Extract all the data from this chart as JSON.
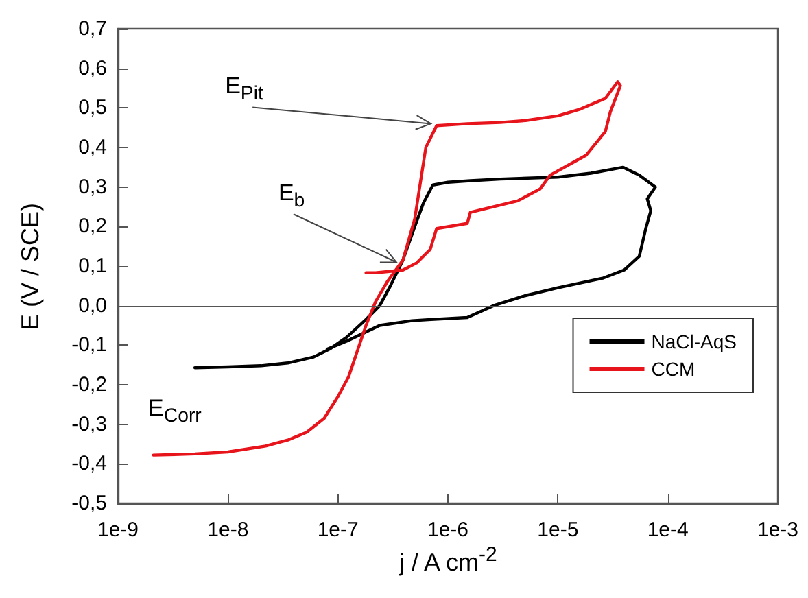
{
  "chart_data": {
    "type": "line",
    "xlabel": "j / A cm$^{-2}$",
    "ylabel": "E (V / SCE)",
    "log": "x",
    "xlim": [
      1e-09,
      0.001
    ],
    "xticks": [
      {
        "value": 1e-09,
        "label": "1e-9"
      },
      {
        "value": 1e-08,
        "label": "1e-8"
      },
      {
        "value": 1e-07,
        "label": "1e-7"
      },
      {
        "value": 1e-06,
        "label": "1e-6"
      },
      {
        "value": 1e-05,
        "label": "1e-5"
      },
      {
        "value": 0.0001,
        "label": "1e-4"
      },
      {
        "value": 0.001,
        "label": "1e-3"
      }
    ],
    "ylim": [
      -0.5,
      0.7
    ],
    "yticks": [
      {
        "value": -0.5,
        "label": "-0,5"
      },
      {
        "value": -0.4,
        "label": "-0,4"
      },
      {
        "value": -0.3,
        "label": "-0,3"
      },
      {
        "value": -0.2,
        "label": "-0,2"
      },
      {
        "value": -0.1,
        "label": "-0,1"
      },
      {
        "value": 0,
        "label": "0,0"
      },
      {
        "value": 0.1,
        "label": "0,1"
      },
      {
        "value": 0.2,
        "label": "0,2"
      },
      {
        "value": 0.3,
        "label": "0,3"
      },
      {
        "value": 0.4,
        "label": "0,4"
      },
      {
        "value": 0.5,
        "label": "0,5"
      },
      {
        "value": 0.6,
        "label": "0,6"
      },
      {
        "value": 0.7,
        "label": "0,7"
      }
    ],
    "grid": false,
    "legend": "bottom right",
    "marker": "none",
    "line_style": "solid",
    "ref_lines": [
      {
        "axis": "y",
        "value": 0,
        "color": "#555555"
      }
    ],
    "annotations": [
      {
        "text": "E$_{Pit}$",
        "x": 7e-07,
        "y": 0.46
      },
      {
        "text": "E$_{b}$",
        "x": 3.4e-07,
        "y": 0.11
      },
      "E$_{Corr}$"
    ],
    "series": [
      {
        "name": "NaCl-AqS",
        "color": "#000000",
        "x": [
          5e-09,
          1e-08,
          2e-08,
          3.5e-08,
          6e-08,
          8.4e-08,
          1.2e-07,
          1.8e-07,
          2.4e-07,
          3e-07,
          3.9e-07,
          5e-07,
          6e-07,
          7.3e-07,
          1e-06,
          1.6e-06,
          3e-06,
          1e-05,
          2e-05,
          3.9e-05,
          5.5e-05,
          7.7e-05,
          6.5e-05,
          7e-05,
          6.3e-05,
          5.5e-05,
          4e-05,
          2.6e-05,
          1e-05,
          5e-06,
          2.6e-06,
          1.5e-06,
          7e-07,
          4.7e-07,
          2.4e-07,
          1.2e-07,
          8e-08
        ],
        "values": [
          -0.157,
          -0.155,
          -0.152,
          -0.145,
          -0.13,
          -0.11,
          -0.08,
          -0.035,
          0,
          0.05,
          0.115,
          0.2,
          0.26,
          0.305,
          0.312,
          0.316,
          0.32,
          0.325,
          0.335,
          0.35,
          0.33,
          0.3,
          0.27,
          0.24,
          0.195,
          0.125,
          0.09,
          0.07,
          0.045,
          0.025,
          0,
          -0.03,
          -0.035,
          -0.038,
          -0.05,
          -0.09,
          -0.11
        ]
      },
      {
        "name": "CCM",
        "color": "#e8141b",
        "x": [
          2.1e-09,
          5e-09,
          1e-08,
          2.2e-08,
          3.5e-08,
          5.2e-08,
          7.5e-08,
          1e-07,
          1.25e-07,
          1.5e-07,
          1.8e-07,
          2.2e-07,
          2.8e-07,
          3.9e-07,
          5e-07,
          6.3e-07,
          7.9e-07,
          1.5e-06,
          3e-06,
          5.1e-06,
          1e-05,
          1.6e-05,
          2.7e-05,
          3.5e-05,
          3.7e-05,
          3e-05,
          2.7e-05,
          1.8e-05,
          8.5e-06,
          6.9e-06,
          4.3e-06,
          1.6e-06,
          1.5e-06,
          7.9e-07,
          6.9e-07,
          5.2e-07,
          3.9e-07,
          2.2e-07,
          1.8e-07
        ],
        "values": [
          -0.378,
          -0.375,
          -0.37,
          -0.355,
          -0.34,
          -0.32,
          -0.285,
          -0.23,
          -0.18,
          -0.115,
          -0.05,
          0.01,
          0.06,
          0.115,
          0.22,
          0.4,
          0.455,
          0.46,
          0.463,
          0.468,
          0.48,
          0.497,
          0.524,
          0.566,
          0.556,
          0.49,
          0.44,
          0.38,
          0.33,
          0.295,
          0.265,
          0.236,
          0.208,
          0.195,
          0.142,
          0.108,
          0.09,
          0.083,
          0.083
        ]
      }
    ]
  }
}
